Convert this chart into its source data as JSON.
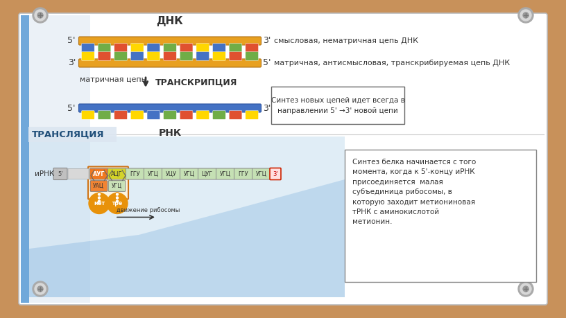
{
  "title_transl": "ТРАНСЛЯЦИЯ",
  "label_dnk": "ДНК",
  "label_rnk": "РНК",
  "label_transcr": "ТРАНСКРИПЦИЯ",
  "label_matric": "матричная цепь",
  "text_smyslovaya": "смысловая, нематричная цепь ДНК",
  "text_matrichnaya": "матричная, антисмысловая, транскрибируемая цепь ДНК",
  "text_box1_line1": "Синтез новых цепей идет всегда в",
  "text_box1_line2": "направлении 5' →3' новой цепи",
  "text_box2": "Синтез белка начинается с того\nмомента, когда к 5'-концу иРНК\nприсоединяется  малая\nсубъединица рибосомы, в\nкоторую заходит метиониновая\nтРНК с аминокислотой\nметионин.",
  "irna_label": "иРНК",
  "codons_highlighted": [
    "АУГ",
    "АЦГ"
  ],
  "codons_green": [
    "ГГУ",
    "УГЦ",
    "УЦУ",
    "УГЦ",
    "ЦУГ",
    "УГЦ",
    "ГГУ",
    "УГЦ"
  ],
  "anticodons_top": [
    "УАЦ",
    "УГЦ"
  ],
  "amino_left": "мет",
  "amino_right": "тре",
  "move_label": "движение рибосомы",
  "colors": {
    "cardboard": "#c8915a",
    "slide_bg": "#ffffff",
    "slide_border": "#cccccc",
    "dna_orange": "#e8a020",
    "dna_blue": "#4472c4",
    "dna_green": "#70ad47",
    "dna_red": "#e05030",
    "dna_yellow": "#ffd700",
    "codon_aug_bg": "#f07820",
    "codon_acg_bg": "#d4d428",
    "codon_green_bg": "#c5e0b4",
    "codon_border_red": "#cc2200",
    "ribosome_orange": "#e8920a",
    "blue_wave": "#5b9bd5",
    "blue_light": "#dce6f1",
    "screw_outer": "#999999",
    "screw_mid": "#cccccc",
    "screw_inner": "#888888"
  }
}
